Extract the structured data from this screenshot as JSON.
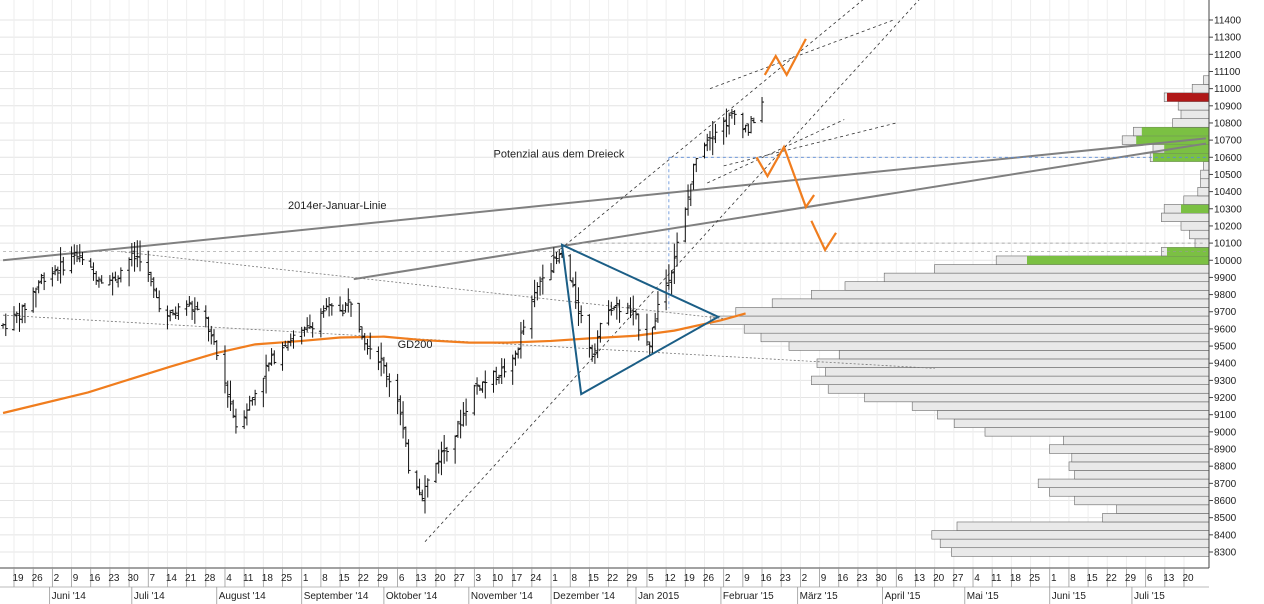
{
  "chart_data": {
    "type": "bar",
    "y_axis": {
      "position": "right",
      "range": [
        8200,
        11500
      ],
      "ticks": [
        8300,
        8400,
        8500,
        8600,
        8700,
        8800,
        8900,
        9000,
        9100,
        9200,
        9300,
        9400,
        9500,
        9600,
        9700,
        9800,
        9900,
        10000,
        10100,
        10200,
        10300,
        10400,
        10500,
        10600,
        10700,
        10800,
        10900,
        11000,
        11100,
        11200,
        11300,
        11400
      ]
    },
    "x_axis": {
      "range": [
        "2014-05-15",
        "2015-07-31"
      ],
      "day_ticks": [
        {
          "date": "2014-05-19",
          "label": "19"
        },
        {
          "date": "2014-05-26",
          "label": "26"
        },
        {
          "date": "2014-06-02",
          "label": "2"
        },
        {
          "date": "2014-06-09",
          "label": "9"
        },
        {
          "date": "2014-06-16",
          "label": "16"
        },
        {
          "date": "2014-06-23",
          "label": "23"
        },
        {
          "date": "2014-06-30",
          "label": "30"
        },
        {
          "date": "2014-07-07",
          "label": "7"
        },
        {
          "date": "2014-07-14",
          "label": "14"
        },
        {
          "date": "2014-07-21",
          "label": "21"
        },
        {
          "date": "2014-07-28",
          "label": "28"
        },
        {
          "date": "2014-08-04",
          "label": "4"
        },
        {
          "date": "2014-08-11",
          "label": "11"
        },
        {
          "date": "2014-08-18",
          "label": "18"
        },
        {
          "date": "2014-08-25",
          "label": "25"
        },
        {
          "date": "2014-09-01",
          "label": "1"
        },
        {
          "date": "2014-09-08",
          "label": "8"
        },
        {
          "date": "2014-09-15",
          "label": "15"
        },
        {
          "date": "2014-09-22",
          "label": "22"
        },
        {
          "date": "2014-09-29",
          "label": "29"
        },
        {
          "date": "2014-10-06",
          "label": "6"
        },
        {
          "date": "2014-10-13",
          "label": "13"
        },
        {
          "date": "2014-10-20",
          "label": "20"
        },
        {
          "date": "2014-10-27",
          "label": "27"
        },
        {
          "date": "2014-11-03",
          "label": "3"
        },
        {
          "date": "2014-11-10",
          "label": "10"
        },
        {
          "date": "2014-11-17",
          "label": "17"
        },
        {
          "date": "2014-11-24",
          "label": "24"
        },
        {
          "date": "2014-12-01",
          "label": "1"
        },
        {
          "date": "2014-12-08",
          "label": "8"
        },
        {
          "date": "2014-12-15",
          "label": "15"
        },
        {
          "date": "2014-12-22",
          "label": "22"
        },
        {
          "date": "2014-12-29",
          "label": "29"
        },
        {
          "date": "2015-01-05",
          "label": "5"
        },
        {
          "date": "2015-01-12",
          "label": "12"
        },
        {
          "date": "2015-01-19",
          "label": "19"
        },
        {
          "date": "2015-01-26",
          "label": "26"
        },
        {
          "date": "2015-02-02",
          "label": "2"
        },
        {
          "date": "2015-02-09",
          "label": "9"
        },
        {
          "date": "2015-02-16",
          "label": "16"
        },
        {
          "date": "2015-02-23",
          "label": "23"
        },
        {
          "date": "2015-03-02",
          "label": "2"
        },
        {
          "date": "2015-03-09",
          "label": "9"
        },
        {
          "date": "2015-03-16",
          "label": "16"
        },
        {
          "date": "2015-03-23",
          "label": "23"
        },
        {
          "date": "2015-03-30",
          "label": "30"
        },
        {
          "date": "2015-04-06",
          "label": "6"
        },
        {
          "date": "2015-04-13",
          "label": "13"
        },
        {
          "date": "2015-04-20",
          "label": "20"
        },
        {
          "date": "2015-04-27",
          "label": "27"
        },
        {
          "date": "2015-05-04",
          "label": "4"
        },
        {
          "date": "2015-05-11",
          "label": "11"
        },
        {
          "date": "2015-05-18",
          "label": "18"
        },
        {
          "date": "2015-05-25",
          "label": "25"
        },
        {
          "date": "2015-06-01",
          "label": "1"
        },
        {
          "date": "2015-06-08",
          "label": "8"
        },
        {
          "date": "2015-06-15",
          "label": "15"
        },
        {
          "date": "2015-06-22",
          "label": "22"
        },
        {
          "date": "2015-06-29",
          "label": "29"
        },
        {
          "date": "2015-07-06",
          "label": "6"
        },
        {
          "date": "2015-07-13",
          "label": "13"
        },
        {
          "date": "2015-07-20",
          "label": "20"
        }
      ],
      "month_labels": [
        {
          "date": "2014-06-01",
          "label": "Juni '14"
        },
        {
          "date": "2014-07-01",
          "label": "Juli '14"
        },
        {
          "date": "2014-08-01",
          "label": "August '14"
        },
        {
          "date": "2014-09-01",
          "label": "September '14"
        },
        {
          "date": "2014-10-01",
          "label": "Oktober '14"
        },
        {
          "date": "2014-11-01",
          "label": "November '14"
        },
        {
          "date": "2014-12-01",
          "label": "Dezember '14"
        },
        {
          "date": "2015-01-01",
          "label": "Jan 2015"
        },
        {
          "date": "2015-02-01",
          "label": "Februar '15"
        },
        {
          "date": "2015-03-01",
          "label": "März '15"
        },
        {
          "date": "2015-04-01",
          "label": "April '15"
        },
        {
          "date": "2015-05-01",
          "label": "Mai '15"
        },
        {
          "date": "2015-06-01",
          "label": "Juni '15"
        },
        {
          "date": "2015-07-01",
          "label": "Juli '15"
        }
      ]
    },
    "price_series": [
      [
        "2014-05-15",
        9620
      ],
      [
        "2014-05-22",
        9700
      ],
      [
        "2014-05-29",
        9900
      ],
      [
        "2014-06-05",
        9960
      ],
      [
        "2014-06-10",
        10040
      ],
      [
        "2014-06-17",
        9920
      ],
      [
        "2014-06-24",
        9880
      ],
      [
        "2014-06-30",
        10010
      ],
      [
        "2014-07-04",
        10020
      ],
      [
        "2014-07-10",
        9780
      ],
      [
        "2014-07-14",
        9660
      ],
      [
        "2014-07-21",
        9750
      ],
      [
        "2014-07-28",
        9650
      ],
      [
        "2014-08-01",
        9440
      ],
      [
        "2014-08-05",
        9230
      ],
      [
        "2014-08-08",
        9040
      ],
      [
        "2014-08-13",
        9170
      ],
      [
        "2014-08-19",
        9370
      ],
      [
        "2014-08-26",
        9530
      ],
      [
        "2014-09-02",
        9580
      ],
      [
        "2014-09-09",
        9710
      ],
      [
        "2014-09-16",
        9720
      ],
      [
        "2014-09-19",
        9770
      ],
      [
        "2014-09-24",
        9540
      ],
      [
        "2014-09-30",
        9410
      ],
      [
        "2014-10-06",
        9200
      ],
      [
        "2014-10-10",
        8800
      ],
      [
        "2014-10-15",
        8640
      ],
      [
        "2014-10-21",
        8850
      ],
      [
        "2014-10-27",
        8990
      ],
      [
        "2014-11-03",
        9260
      ],
      [
        "2014-11-10",
        9320
      ],
      [
        "2014-11-17",
        9400
      ],
      [
        "2014-11-21",
        9610
      ],
      [
        "2014-11-28",
        9930
      ],
      [
        "2014-12-05",
        10030
      ],
      [
        "2014-12-09",
        9820
      ],
      [
        "2014-12-16",
        9460
      ],
      [
        "2014-12-22",
        9740
      ],
      [
        "2014-12-30",
        9700
      ],
      [
        "2015-01-06",
        9520
      ],
      [
        "2015-01-09",
        9740
      ],
      [
        "2015-01-14",
        9960
      ],
      [
        "2015-01-19",
        10280
      ],
      [
        "2015-01-23",
        10620
      ],
      [
        "2015-01-28",
        10740
      ],
      [
        "2015-02-02",
        10800
      ],
      [
        "2015-02-06",
        10850
      ],
      [
        "2015-02-11",
        10760
      ],
      [
        "2015-02-16",
        10920
      ]
    ],
    "gd200_series": [
      [
        "2014-05-15",
        9110
      ],
      [
        "2014-06-15",
        9230
      ],
      [
        "2014-07-15",
        9380
      ],
      [
        "2014-08-01",
        9460
      ],
      [
        "2014-08-15",
        9510
      ],
      [
        "2014-09-01",
        9530
      ],
      [
        "2014-09-15",
        9550
      ],
      [
        "2014-10-01",
        9555
      ],
      [
        "2014-10-15",
        9535
      ],
      [
        "2014-11-01",
        9520
      ],
      [
        "2014-11-15",
        9520
      ],
      [
        "2014-12-01",
        9530
      ],
      [
        "2014-12-15",
        9545
      ],
      [
        "2015-01-01",
        9560
      ],
      [
        "2015-01-15",
        9590
      ],
      [
        "2015-02-01",
        9650
      ],
      [
        "2015-02-10",
        9690
      ]
    ],
    "volume_profile": [
      {
        "price": 8300,
        "length": 0.92
      },
      {
        "price": 8350,
        "length": 0.96
      },
      {
        "price": 8400,
        "length": 0.99
      },
      {
        "price": 8450,
        "length": 0.9
      },
      {
        "price": 8500,
        "length": 0.38
      },
      {
        "price": 8550,
        "length": 0.33
      },
      {
        "price": 8600,
        "length": 0.48
      },
      {
        "price": 8650,
        "length": 0.57
      },
      {
        "price": 8700,
        "length": 0.61
      },
      {
        "price": 8750,
        "length": 0.48
      },
      {
        "price": 8800,
        "length": 0.5
      },
      {
        "price": 8850,
        "length": 0.49
      },
      {
        "price": 8900,
        "length": 0.57
      },
      {
        "price": 8950,
        "length": 0.52
      },
      {
        "price": 9000,
        "length": 0.8
      },
      {
        "price": 9050,
        "length": 0.91
      },
      {
        "price": 9100,
        "length": 0.97
      },
      {
        "price": 9150,
        "length": 1.06
      },
      {
        "price": 9200,
        "length": 1.23
      },
      {
        "price": 9250,
        "length": 1.36
      },
      {
        "price": 9300,
        "length": 1.42
      },
      {
        "price": 9350,
        "length": 1.37
      },
      {
        "price": 9400,
        "length": 1.4
      },
      {
        "price": 9450,
        "length": 1.32
      },
      {
        "price": 9500,
        "length": 1.5
      },
      {
        "price": 9550,
        "length": 1.6
      },
      {
        "price": 9600,
        "length": 1.66
      },
      {
        "price": 9650,
        "length": 1.78
      },
      {
        "price": 9700,
        "length": 1.69
      },
      {
        "price": 9750,
        "length": 1.56
      },
      {
        "price": 9800,
        "length": 1.42
      },
      {
        "price": 9850,
        "length": 1.3
      },
      {
        "price": 9900,
        "length": 1.16
      },
      {
        "price": 9950,
        "length": 0.98
      },
      {
        "price": 10000,
        "length": 0.76,
        "highlight": "green",
        "hv": 0.65
      },
      {
        "price": 10050,
        "length": 0.17,
        "highlight": "green",
        "hv": 0.15
      },
      {
        "price": 10100,
        "length": 0.05
      },
      {
        "price": 10150,
        "length": 0.07
      },
      {
        "price": 10200,
        "length": 0.1
      },
      {
        "price": 10250,
        "length": 0.17
      },
      {
        "price": 10300,
        "length": 0.16,
        "highlight": "green",
        "hv": 0.1
      },
      {
        "price": 10350,
        "length": 0.09
      },
      {
        "price": 10400,
        "length": 0.04
      },
      {
        "price": 10450,
        "length": 0.03
      },
      {
        "price": 10500,
        "length": 0.03
      },
      {
        "price": 10550,
        "length": 0.02
      },
      {
        "price": 10600,
        "length": 0.21,
        "highlight": "green",
        "hv": 0.2
      },
      {
        "price": 10650,
        "length": 0.2,
        "highlight": "green",
        "hv": 0.16
      },
      {
        "price": 10700,
        "length": 0.31,
        "highlight": "green",
        "hv": 0.26
      },
      {
        "price": 10750,
        "length": 0.27,
        "highlight": "green",
        "hv": 0.24
      },
      {
        "price": 10800,
        "length": 0.13
      },
      {
        "price": 10850,
        "length": 0.1
      },
      {
        "price": 10900,
        "length": 0.11
      },
      {
        "price": 10950,
        "length": 0.16,
        "highlight": "red",
        "hv": 0.15
      },
      {
        "price": 11000,
        "length": 0.06
      },
      {
        "price": 11050,
        "length": 0.02
      }
    ],
    "annotations": [
      {
        "id": "januar",
        "text": "2014er-Januar-Linie",
        "date": "2014-08-27",
        "price": 10300
      },
      {
        "id": "potenzial",
        "text": "Potenzial aus dem Dreieck",
        "date": "2014-11-10",
        "price": 10600
      },
      {
        "id": "gd200",
        "text": "GD200",
        "date": "2014-10-06",
        "price": 9490
      }
    ],
    "colors": {
      "price": "#111111",
      "gd200": "#f07d1e",
      "trendline": "#808080",
      "triangle": "#1b5e86",
      "projection": "#f07d1e",
      "profile_fill": "#e9e9e9",
      "profile_stroke": "#666666",
      "profile_green": "#7bc043",
      "profile_red": "#b01818",
      "guide": "#5b8bd6"
    }
  }
}
